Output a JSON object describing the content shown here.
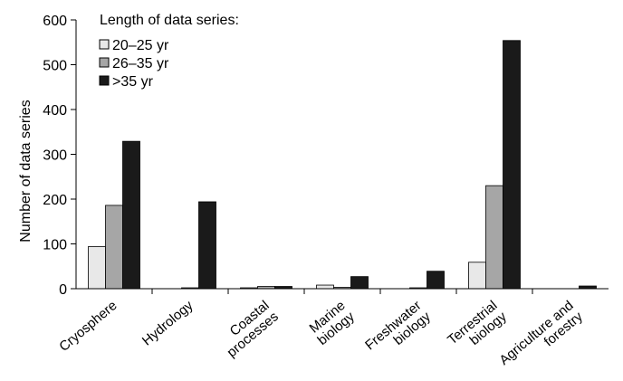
{
  "chart_data": {
    "type": "bar",
    "ylabel": "Number of data series",
    "xlabel": "",
    "ylim": [
      0,
      600
    ],
    "yticks": [
      0,
      100,
      200,
      300,
      400,
      500,
      600
    ],
    "grid": false,
    "legend": {
      "title": "Length of data series:",
      "placement": "top-left"
    },
    "categories": [
      [
        "Cryosphere"
      ],
      [
        "Hydrology"
      ],
      [
        "Coastal",
        "processes"
      ],
      [
        "Marine",
        "biology"
      ],
      [
        "Freshwater",
        "biology"
      ],
      [
        "Terrestrial",
        "biology"
      ],
      [
        "Agriculture and",
        "forestry"
      ]
    ],
    "series": [
      {
        "name": "20–25 yr",
        "color": "#e8e8e8",
        "values": [
          94,
          0,
          2,
          8,
          0,
          59,
          0
        ]
      },
      {
        "name": "26–35 yr",
        "color": "#a6a6a6",
        "values": [
          186,
          2,
          5,
          3,
          2,
          230,
          0
        ]
      },
      {
        "name": ">35 yr",
        "color": "#1a1a1a",
        "values": [
          329,
          194,
          5,
          27,
          39,
          554,
          6
        ]
      }
    ]
  }
}
